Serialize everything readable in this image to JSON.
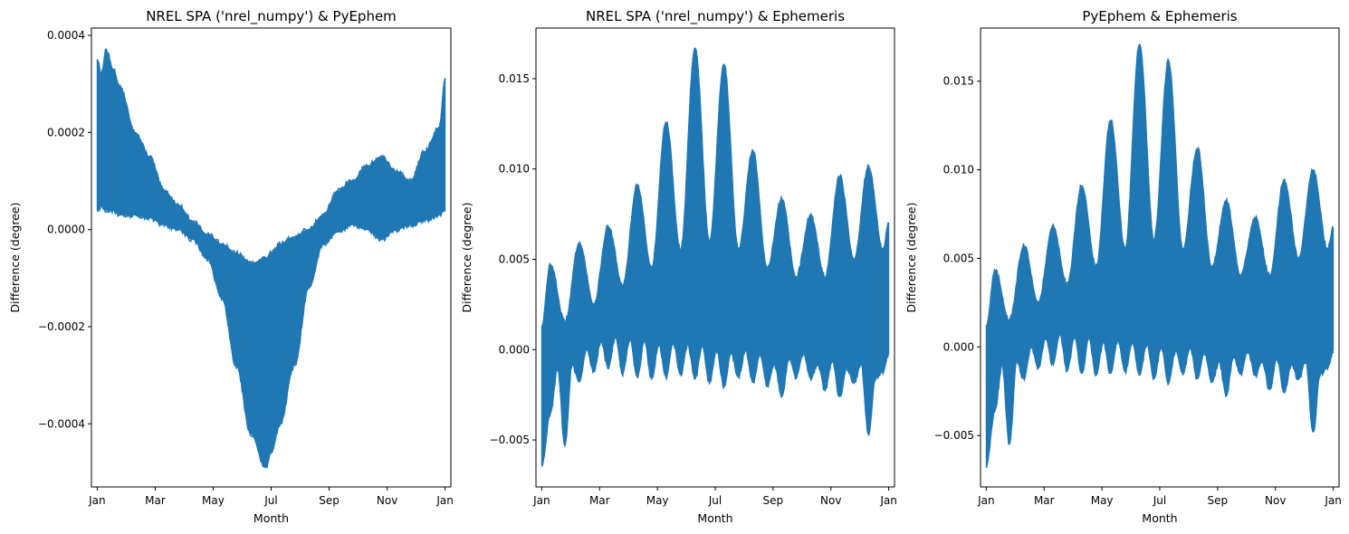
{
  "colors": {
    "series": "#1f77b4",
    "axis": "#000000",
    "background": "#ffffff"
  },
  "chart_data": [
    {
      "type": "area",
      "title": "NREL SPA ('nrel_numpy') & PyEphem",
      "xlabel": "Month",
      "ylabel": "Difference (degree)",
      "xticks": [
        "Jan",
        "Mar",
        "May",
        "Jul",
        "Sep",
        "Nov",
        "Jan"
      ],
      "xlim": [
        0,
        12.4
      ],
      "xtick_positions": [
        0.2,
        2.2,
        4.2,
        6.2,
        8.2,
        10.2,
        12.2
      ],
      "ylim": [
        -0.00053,
        0.000415
      ],
      "yticks": [
        -0.0004,
        -0.0002,
        0.0,
        0.0002,
        0.0004
      ],
      "ytick_labels": [
        "−0.0004",
        "−0.0002",
        "0.0000",
        "0.0002",
        "0.0004"
      ],
      "grid": false,
      "legend": "none",
      "envelope": {
        "x": [
          0.2,
          0.35,
          0.5,
          0.75,
          1.0,
          1.5,
          2.0,
          2.5,
          3.0,
          3.5,
          4.0,
          4.5,
          5.0,
          5.5,
          6.0,
          6.2,
          6.5,
          7.0,
          7.5,
          8.0,
          8.5,
          9.0,
          9.5,
          10.0,
          10.5,
          11.0,
          11.5,
          12.0,
          12.2
        ],
        "upper": [
          0.00035,
          0.00032,
          0.00037,
          0.00033,
          0.00029,
          0.0002,
          0.00015,
          8e-05,
          5e-05,
          1.5e-05,
          -1e-05,
          -3e-05,
          -5e-05,
          -7e-05,
          -6e-05,
          -5e-05,
          -3e-05,
          -1.5e-05,
          0.0,
          3e-05,
          8e-05,
          0.0001,
          0.00013,
          0.00015,
          0.00012,
          0.0001,
          0.00016,
          0.00021,
          0.00031
        ],
        "lower": [
          4e-05,
          5e-05,
          4e-05,
          4e-05,
          3e-05,
          3e-05,
          2.5e-05,
          1e-05,
          0.0,
          -2e-05,
          -6e-05,
          -0.00014,
          -0.00028,
          -0.00042,
          -0.00049,
          -0.00046,
          -0.0004,
          -0.00028,
          -0.00012,
          -3e-05,
          -5e-06,
          1e-05,
          0.0,
          -2e-05,
          0.0,
          1e-05,
          2e-05,
          3e-05,
          4e-05
        ]
      }
    },
    {
      "type": "area",
      "title": "NREL SPA ('nrel_numpy') & Ephemeris",
      "xlabel": "Month",
      "ylabel": "Difference (degree)",
      "xticks": [
        "Jan",
        "Mar",
        "May",
        "Jul",
        "Sep",
        "Nov",
        "Jan"
      ],
      "xlim": [
        0,
        12.4
      ],
      "xtick_positions": [
        0.2,
        2.2,
        4.2,
        6.2,
        8.2,
        10.2,
        12.2
      ],
      "ylim": [
        -0.0076,
        0.0178
      ],
      "yticks": [
        -0.005,
        0.0,
        0.005,
        0.01,
        0.015
      ],
      "ytick_labels": [
        "−0.005",
        "0.000",
        "0.005",
        "0.010",
        "0.015"
      ],
      "grid": false,
      "legend": "none",
      "peaks": {
        "upper_x": [
          0.2,
          0.5,
          1.0,
          1.5,
          2.0,
          2.5,
          3.0,
          3.5,
          4.0,
          4.5,
          5.0,
          5.5,
          6.0,
          6.5,
          7.0,
          7.5,
          8.0,
          8.5,
          9.0,
          9.5,
          10.0,
          10.5,
          11.0,
          11.5,
          12.0,
          12.2
        ],
        "upper_y": [
          0.0013,
          0.0047,
          0.0015,
          0.0059,
          0.0025,
          0.0068,
          0.0035,
          0.0091,
          0.0045,
          0.0126,
          0.0055,
          0.0167,
          0.006,
          0.0158,
          0.0055,
          0.011,
          0.0045,
          0.0083,
          0.004,
          0.0074,
          0.004,
          0.0096,
          0.005,
          0.0101,
          0.0055,
          0.007
        ],
        "lower_x": [
          0.2,
          0.5,
          0.75,
          1.0,
          1.25,
          1.5,
          1.75,
          2.0,
          2.25,
          2.5,
          2.75,
          3.0,
          3.25,
          3.5,
          3.75,
          4.0,
          4.25,
          4.5,
          4.75,
          5.0,
          5.25,
          5.5,
          5.75,
          6.0,
          6.25,
          6.5,
          6.75,
          7.0,
          7.25,
          7.5,
          7.75,
          8.0,
          8.25,
          8.5,
          8.75,
          9.0,
          9.25,
          9.5,
          9.75,
          10.0,
          10.25,
          10.5,
          10.75,
          11.0,
          11.25,
          11.5,
          11.75,
          12.0,
          12.2
        ],
        "lower_y": [
          -0.0064,
          -0.0035,
          -0.001,
          -0.0053,
          -0.0008,
          -0.0018,
          0.0,
          -0.0012,
          0.0005,
          -0.001,
          0.0007,
          -0.0013,
          0.0006,
          -0.0015,
          0.0005,
          -0.0016,
          0.0003,
          -0.0015,
          0.0004,
          -0.0014,
          0.0003,
          -0.0016,
          0.0002,
          -0.0018,
          0.0,
          -0.002,
          -0.0002,
          -0.0015,
          0.0,
          -0.0018,
          -0.0003,
          -0.002,
          -0.0008,
          -0.0026,
          -0.0005,
          -0.0015,
          -0.0002,
          -0.0016,
          -0.0008,
          -0.0022,
          -0.0006,
          -0.0026,
          -0.001,
          -0.0018,
          -0.0008,
          -0.0047,
          -0.0015,
          -0.0012,
          -0.0002
        ]
      }
    },
    {
      "type": "area",
      "title": "PyEphem & Ephemeris",
      "xlabel": "Month",
      "ylabel": "Difference (degree)",
      "xticks": [
        "Jan",
        "Mar",
        "May",
        "Jul",
        "Sep",
        "Nov",
        "Jan"
      ],
      "xlim": [
        0,
        12.4
      ],
      "xtick_positions": [
        0.2,
        2.2,
        4.2,
        6.2,
        8.2,
        10.2,
        12.2
      ],
      "ylim": [
        -0.0079,
        0.018
      ],
      "yticks": [
        -0.005,
        0.0,
        0.005,
        0.01,
        0.015
      ],
      "ytick_labels": [
        "−0.005",
        "0.000",
        "0.005",
        "0.010",
        "0.015"
      ],
      "grid": false,
      "legend": "none",
      "peaks": {
        "upper_x": [
          0.2,
          0.5,
          1.0,
          1.5,
          2.0,
          2.5,
          3.0,
          3.5,
          4.0,
          4.5,
          5.0,
          5.5,
          6.0,
          6.5,
          7.0,
          7.5,
          8.0,
          8.5,
          9.0,
          9.5,
          10.0,
          10.5,
          11.0,
          11.5,
          12.0,
          12.2
        ],
        "upper_y": [
          0.0012,
          0.0043,
          0.0015,
          0.0057,
          0.0025,
          0.0068,
          0.0035,
          0.0091,
          0.0045,
          0.0128,
          0.0055,
          0.0171,
          0.006,
          0.0161,
          0.0055,
          0.0112,
          0.0045,
          0.0082,
          0.004,
          0.0073,
          0.004,
          0.0094,
          0.005,
          0.01,
          0.0055,
          0.0067
        ],
        "lower_x": [
          0.2,
          0.5,
          0.75,
          1.0,
          1.25,
          1.5,
          1.75,
          2.0,
          2.25,
          2.5,
          2.75,
          3.0,
          3.25,
          3.5,
          3.75,
          4.0,
          4.25,
          4.5,
          4.75,
          5.0,
          5.25,
          5.5,
          5.75,
          6.0,
          6.25,
          6.5,
          6.75,
          7.0,
          7.25,
          7.5,
          7.75,
          8.0,
          8.25,
          8.5,
          8.75,
          9.0,
          9.25,
          9.5,
          9.75,
          10.0,
          10.25,
          10.5,
          10.75,
          11.0,
          11.25,
          11.5,
          11.75,
          12.0,
          12.2
        ],
        "lower_y": [
          -0.0067,
          -0.0035,
          -0.001,
          -0.0055,
          -0.0008,
          -0.0018,
          0.0,
          -0.0012,
          0.0005,
          -0.001,
          0.0007,
          -0.0013,
          0.0006,
          -0.0015,
          0.0005,
          -0.0016,
          0.0003,
          -0.0015,
          0.0004,
          -0.0014,
          0.0003,
          -0.0016,
          0.0002,
          -0.0018,
          0.0,
          -0.002,
          -0.0002,
          -0.0015,
          0.0,
          -0.0018,
          -0.0003,
          -0.002,
          -0.0008,
          -0.0027,
          -0.0005,
          -0.0015,
          -0.0002,
          -0.0016,
          -0.0008,
          -0.0024,
          -0.0006,
          -0.0026,
          -0.001,
          -0.0018,
          -0.0008,
          -0.0048,
          -0.0015,
          -0.0012,
          -0.0002
        ]
      }
    }
  ]
}
